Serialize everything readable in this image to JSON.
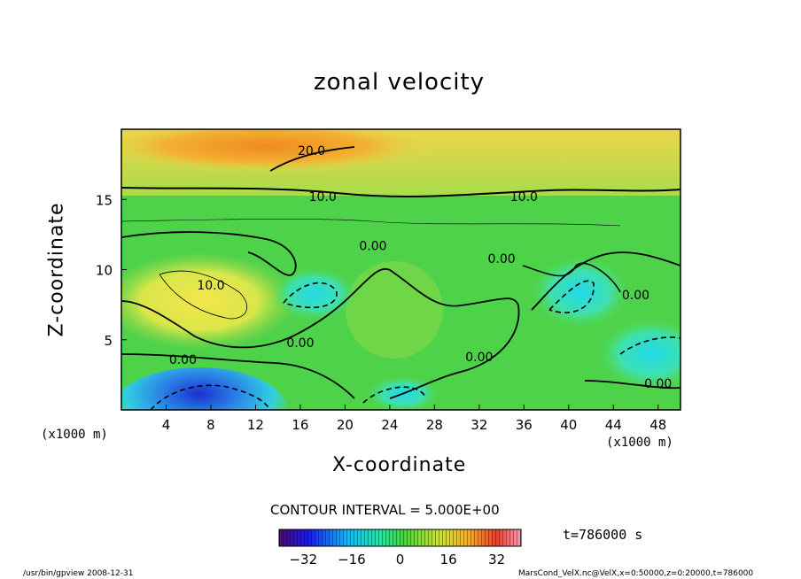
{
  "chart_data": {
    "type": "contour",
    "title": "zonal velocity",
    "xlabel": "X-coordinate",
    "ylabel": "Z-coordinate",
    "x_unit_label": "(x1000 m)",
    "y_unit_label": "(x1000 m)",
    "xlim": [
      0,
      50
    ],
    "ylim": [
      0,
      20
    ],
    "x_ticks": [
      4,
      8,
      12,
      16,
      20,
      24,
      28,
      32,
      36,
      40,
      44,
      48
    ],
    "y_ticks": [
      5,
      10,
      15
    ],
    "contour_interval_label": "CONTOUR INTERVAL = 5.000E+00",
    "contour_labels": [
      {
        "text": "20.0",
        "x": 17,
        "z": 18.5
      },
      {
        "text": "10.0",
        "x": 18,
        "z": 15.2
      },
      {
        "text": "10.0",
        "x": 36,
        "z": 15.2
      },
      {
        "text": "0.00",
        "x": 22.5,
        "z": 11.7
      },
      {
        "text": "0.00",
        "x": 34,
        "z": 10.8
      },
      {
        "text": "10.0",
        "x": 8,
        "z": 8.9
      },
      {
        "text": "0.00",
        "x": 16,
        "z": 4.8
      },
      {
        "text": "0.00",
        "x": 32,
        "z": 3.8
      },
      {
        "text": "0.00",
        "x": 5.5,
        "z": 3.6
      },
      {
        "text": "0.00",
        "x": 46,
        "z": 8.2
      },
      {
        "text": "0.00",
        "x": 48,
        "z": 1.9
      }
    ],
    "colorbar": {
      "ticks": [
        -32,
        -16,
        0,
        16,
        32
      ],
      "tick_labels": [
        "−32",
        "−16",
        "0",
        "16",
        "32"
      ],
      "min": -40,
      "max": 40
    },
    "time_label": "t=786000 s"
  },
  "footer": {
    "left": "/usr/bin/gpview   2008-12-31",
    "right": "MarsCond_VelX.nc@VelX,x=0:50000,z=0:20000,t=786000"
  }
}
